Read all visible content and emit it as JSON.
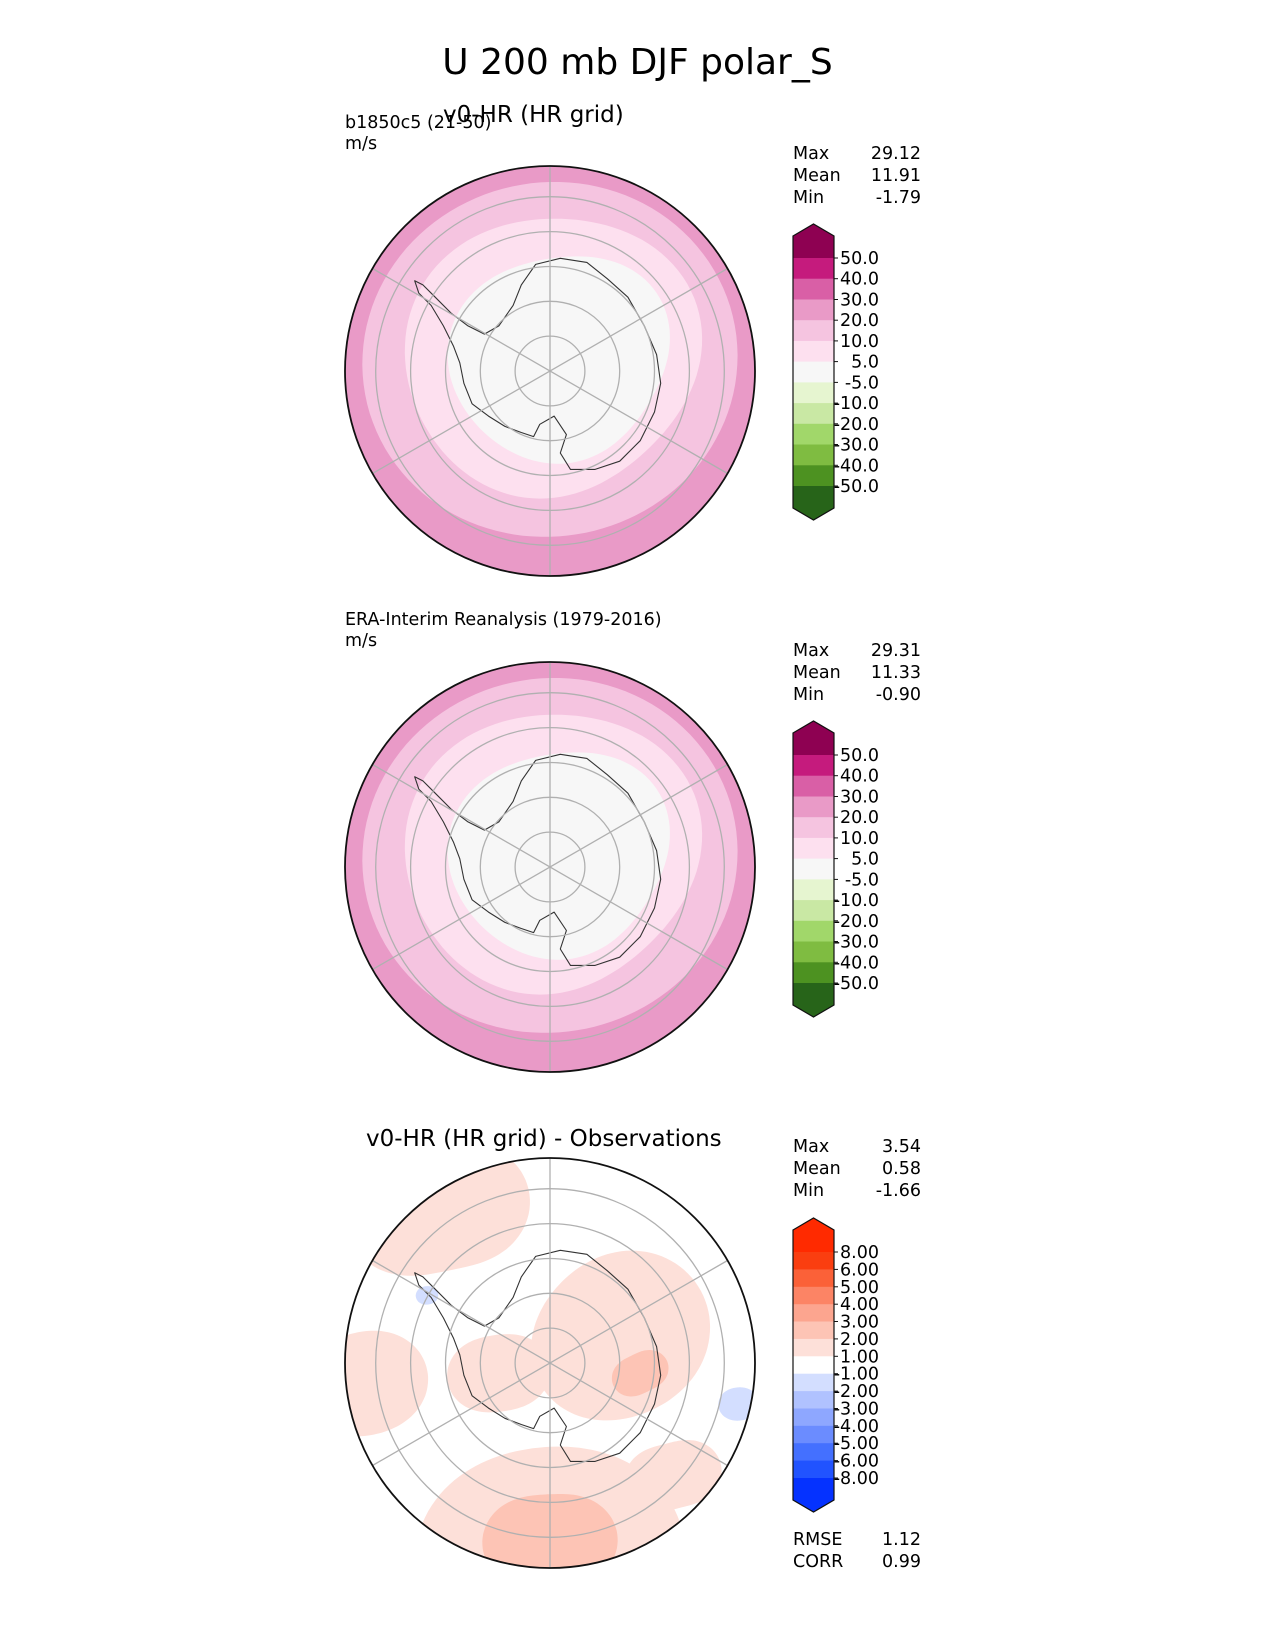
{
  "title": "U 200 mb DJF polar_S",
  "panels": [
    {
      "title": "v0-HR (HR grid)",
      "left_label": "b1850c5 (21-50)",
      "units": "m/s",
      "stats": [
        {
          "label": "Max",
          "value": "29.12"
        },
        {
          "label": "Mean",
          "value": "11.91"
        },
        {
          "label": "Min",
          "value": "-1.79"
        }
      ]
    },
    {
      "title": "",
      "left_label": "ERA-Interim Reanalysis (1979-2016)",
      "units": "m/s",
      "stats": [
        {
          "label": "Max",
          "value": "29.31"
        },
        {
          "label": "Mean",
          "value": "11.33"
        },
        {
          "label": "Min",
          "value": "-0.90"
        }
      ]
    },
    {
      "title": "v0-HR (HR grid) - Observations",
      "left_label": "",
      "units": "",
      "stats": [
        {
          "label": "Max",
          "value": "3.54"
        },
        {
          "label": "Mean",
          "value": "0.58"
        },
        {
          "label": "Min",
          "value": "-1.66"
        }
      ],
      "metrics": [
        {
          "label": "RMSE",
          "value": "1.12"
        },
        {
          "label": "CORR",
          "value": "0.99"
        }
      ]
    }
  ],
  "chart_data": [
    {
      "type": "heatmap",
      "title": "v0-HR (HR grid)",
      "projection": "south polar stereographic",
      "variable": "U 200 mb",
      "units": "m/s",
      "colorbar": {
        "levels": [
          "-50.0",
          "-40.0",
          "-30.0",
          "-20.0",
          "-10.0",
          "-5.0",
          "5.0",
          "10.0",
          "20.0",
          "30.0",
          "40.0",
          "50.0"
        ],
        "colors": [
          "#276419",
          "#4d9221",
          "#7fbc41",
          "#a1d76a",
          "#c9e8a4",
          "#e6f5d0",
          "#f7f7f7",
          "#fde0ef",
          "#f5c4e0",
          "#e99ac7",
          "#d95fa6",
          "#c51b7d",
          "#8e0152"
        ],
        "extend": "both"
      },
      "field_bands": [
        {
          "range": "-5 to 5",
          "color": "#f7f7f7",
          "region": "polar cap"
        },
        {
          "range": "5 to 10",
          "color": "#fde0ef",
          "region": "inner ring"
        },
        {
          "range": "10 to 20",
          "color": "#f5c4e0",
          "region": "middle ring"
        },
        {
          "range": "20 to 30",
          "color": "#e99ac7",
          "region": "outer ring"
        }
      ]
    },
    {
      "type": "heatmap",
      "title": "ERA-Interim Reanalysis (1979-2016)",
      "projection": "south polar stereographic",
      "variable": "U 200 mb",
      "units": "m/s",
      "colorbar": {
        "levels": [
          "-50.0",
          "-40.0",
          "-30.0",
          "-20.0",
          "-10.0",
          "-5.0",
          "5.0",
          "10.0",
          "20.0",
          "30.0",
          "40.0",
          "50.0"
        ],
        "colors": [
          "#276419",
          "#4d9221",
          "#7fbc41",
          "#a1d76a",
          "#c9e8a4",
          "#e6f5d0",
          "#f7f7f7",
          "#fde0ef",
          "#f5c4e0",
          "#e99ac7",
          "#d95fa6",
          "#c51b7d",
          "#8e0152"
        ],
        "extend": "both"
      },
      "field_bands": [
        {
          "range": "-5 to 5",
          "color": "#f7f7f7",
          "region": "polar cap"
        },
        {
          "range": "5 to 10",
          "color": "#fde0ef",
          "region": "inner ring"
        },
        {
          "range": "10 to 20",
          "color": "#f5c4e0",
          "region": "middle ring"
        },
        {
          "range": "20 to 30",
          "color": "#e99ac7",
          "region": "outer ring"
        }
      ]
    },
    {
      "type": "heatmap",
      "title": "v0-HR (HR grid) - Observations",
      "projection": "south polar stereographic",
      "variable": "U 200 mb difference",
      "units": "m/s",
      "colorbar": {
        "levels": [
          "-8.00",
          "-6.00",
          "-5.00",
          "-4.00",
          "-3.00",
          "-2.00",
          "-1.00",
          "1.00",
          "2.00",
          "3.00",
          "4.00",
          "5.00",
          "6.00",
          "8.00"
        ],
        "colors": [
          "#0532ff",
          "#2153ff",
          "#4470ff",
          "#6b8cff",
          "#8ea7ff",
          "#b0c2ff",
          "#d3deff",
          "#ffffff",
          "#fde0d9",
          "#fdc4b5",
          "#fca58f",
          "#fc8465",
          "#fb6138",
          "#fa3e10",
          "#ff2a00"
        ],
        "extend": "both"
      },
      "field_bands": [
        {
          "range": "-1 to 1",
          "color": "#ffffff",
          "region": "most of domain"
        },
        {
          "range": "1 to 2",
          "color": "#fde0d9",
          "region": "east Antarctica and outer ring"
        },
        {
          "range": "2 to 3",
          "color": "#fdc4b5",
          "region": "scattered patches"
        },
        {
          "range": "-2 to -1",
          "color": "#d3deff",
          "region": "small patches west and east"
        }
      ]
    }
  ]
}
